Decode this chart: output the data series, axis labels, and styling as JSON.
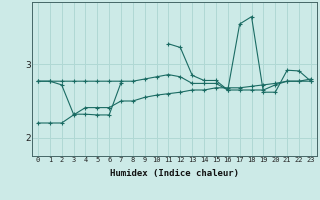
{
  "title": "",
  "xlabel": "Humidex (Indice chaleur)",
  "background_color": "#cceae7",
  "grid_color": "#b0d8d4",
  "line_color": "#1a6b63",
  "x_values": [
    0,
    1,
    2,
    3,
    4,
    5,
    6,
    7,
    8,
    9,
    10,
    11,
    12,
    13,
    14,
    15,
    16,
    17,
    18,
    19,
    20,
    21,
    22,
    23
  ],
  "line1_y": [
    2.77,
    2.77,
    2.72,
    2.32,
    2.32,
    2.31,
    2.31,
    2.75,
    null,
    null,
    null,
    3.28,
    3.23,
    2.85,
    2.78,
    2.78,
    2.65,
    3.55,
    3.65,
    2.62,
    2.62,
    2.92,
    2.91,
    2.77
  ],
  "line2_y": [
    2.77,
    2.77,
    2.77,
    2.77,
    2.77,
    2.77,
    2.77,
    2.77,
    2.77,
    2.8,
    2.83,
    2.86,
    2.83,
    2.74,
    2.74,
    2.74,
    2.65,
    2.65,
    2.65,
    2.65,
    2.72,
    2.77,
    2.77,
    2.77
  ],
  "line3_y": [
    2.2,
    2.2,
    2.2,
    2.31,
    2.41,
    2.41,
    2.41,
    2.5,
    2.5,
    2.55,
    2.58,
    2.6,
    2.62,
    2.65,
    2.65,
    2.68,
    2.68,
    2.68,
    2.7,
    2.72,
    2.74,
    2.77,
    2.77,
    2.8
  ],
  "ylim": [
    1.75,
    3.85
  ],
  "yticks": [
    2,
    3
  ],
  "xlim": [
    -0.5,
    23.5
  ],
  "xtick_fontsize": 5.0,
  "ytick_fontsize": 6.5,
  "xlabel_fontsize": 6.5
}
